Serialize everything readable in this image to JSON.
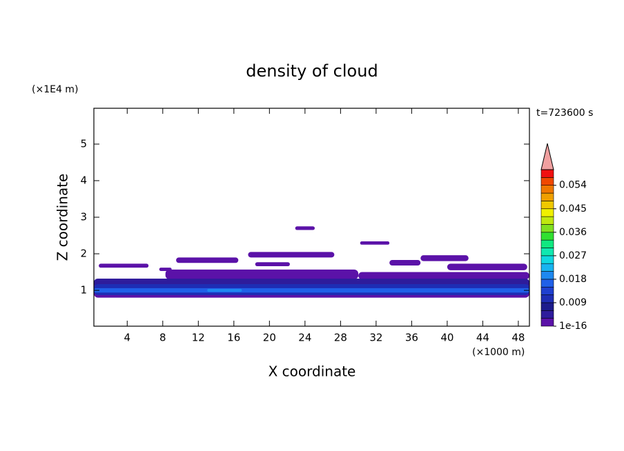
{
  "chart_data": {
    "type": "contour",
    "title": "density of cloud",
    "x_label": "X coordinate",
    "y_label": "Z coordinate",
    "x_unit": "(×1000 m)",
    "y_unit": "(×1E4 m)",
    "annotation": "t=723600 s",
    "xlim": [
      0.25,
      49.25
    ],
    "ylim": [
      0.02,
      5.98
    ],
    "xticks": [
      4,
      8,
      12,
      16,
      20,
      24,
      28,
      32,
      36,
      40,
      44,
      48
    ],
    "yticks": [
      1,
      2,
      3,
      4,
      5
    ],
    "clim": [
      1e-16,
      0.06
    ],
    "cticks": [
      1e-16,
      0.009,
      0.018,
      0.027,
      0.036,
      0.045,
      0.054
    ],
    "colormap": [
      "#5b12a8",
      "#2e1c9c",
      "#1c1c8c",
      "#1e2db4",
      "#1f40d0",
      "#2060e8",
      "#1e88f0",
      "#18b4f0",
      "#10d8e0",
      "#10e8b0",
      "#10e880",
      "#30e030",
      "#80e020",
      "#c0e810",
      "#f0f000",
      "#f0c800",
      "#f0a000",
      "#f07800",
      "#f04800",
      "#f01010"
    ],
    "extend_color": "#f0a0a0",
    "cells": [
      {
        "x": [
          0.25,
          49.25
        ],
        "z": [
          0.8,
          1.32
        ],
        "value": 0.002
      },
      {
        "x": [
          8.3,
          30
        ],
        "z": [
          1.3,
          1.57
        ],
        "value": 0.002
      },
      {
        "x": [
          30,
          49.25
        ],
        "z": [
          1.3,
          1.5
        ],
        "value": 0.002
      },
      {
        "x": [
          0.25,
          49.25
        ],
        "z": [
          1.11,
          1.32
        ],
        "value": 0.005
      },
      {
        "x": [
          0.25,
          49.25
        ],
        "z": [
          0.87,
          1.17
        ],
        "value": 0.011
      },
      {
        "x": [
          0.25,
          49.25
        ],
        "z": [
          0.94,
          1.06
        ],
        "value": 0.017
      },
      {
        "x": [
          13,
          16.9
        ],
        "z": [
          0.96,
          1.04
        ],
        "value": 0.02
      },
      {
        "x": [
          22.9,
          25.1
        ],
        "z": [
          2.65,
          2.75
        ],
        "value": 0.002
      },
      {
        "x": [
          30.2,
          33.5
        ],
        "z": [
          2.25,
          2.34
        ],
        "value": 0.002
      },
      {
        "x": [
          17.6,
          27.3
        ],
        "z": [
          1.9,
          2.05
        ],
        "value": 0.002
      },
      {
        "x": [
          37,
          42.4
        ],
        "z": [
          1.8,
          1.96
        ],
        "value": 0.002
      },
      {
        "x": [
          9.5,
          16.5
        ],
        "z": [
          1.75,
          1.9
        ],
        "value": 0.002
      },
      {
        "x": [
          0.8,
          6.4
        ],
        "z": [
          1.62,
          1.73
        ],
        "value": 0.002
      },
      {
        "x": [
          18.4,
          22.3
        ],
        "z": [
          1.66,
          1.77
        ],
        "value": 0.002
      },
      {
        "x": [
          33.5,
          37
        ],
        "z": [
          1.68,
          1.83
        ],
        "value": 0.002
      },
      {
        "x": [
          40,
          49
        ],
        "z": [
          1.55,
          1.73
        ],
        "value": 0.002
      },
      {
        "x": [
          7.6,
          9
        ],
        "z": [
          1.53,
          1.62
        ],
        "value": 0.002
      }
    ]
  }
}
